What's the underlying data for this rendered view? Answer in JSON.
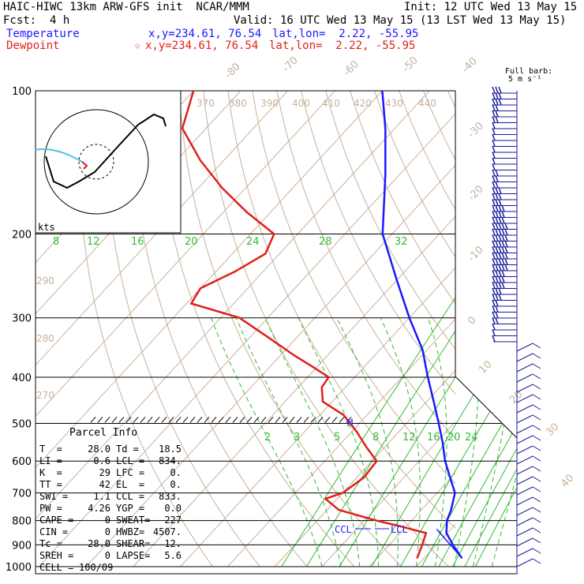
{
  "header": {
    "title": "HAIC-HIWC 13km ARW-GFS init  NCAR/MMM",
    "init": "Init: 12 UTC Wed 13 May 15",
    "fcst": "Fcst:  4 h",
    "valid": "Valid: 16 UTC Wed 13 May 15 (13 LST Wed 13 May 15)",
    "temperature_label": "Temperature",
    "temperature_xy": "x,y=234.61, 76.54",
    "temperature_latlon": "lat,lon=  2.22, -55.95",
    "dewpoint_label": "Dewpoint",
    "dewpoint_marker": "☆",
    "dewpoint_xy": "x,y=234.61, 76.54",
    "dewpoint_latlon": "lat,lon=  2.22, -55.95"
  },
  "colors": {
    "temperature": "#1a1aff",
    "dewpoint": "#e0201a",
    "isotherm": "#c8b09a",
    "mixing_ratio": "#33bb33",
    "isobar": "#000000",
    "barb": "#1a1a99"
  },
  "barb_legend": {
    "line1": "Full barb:",
    "line2": "5 m s⁻¹"
  },
  "parcel_info": {
    "title": "Parcel Info",
    "rows": [
      {
        "l1": "T  =",
        "v1": "28.0",
        "l2": "Td =",
        "v2": "18.5"
      },
      {
        "l1": "LI =",
        "v1": "0.6",
        "l2": "LCL =",
        "v2": "834."
      },
      {
        "l1": "K  =",
        "v1": "29",
        "l2": "LFC =",
        "v2": "0."
      },
      {
        "l1": "TT =",
        "v1": "42",
        "l2": "EL  =",
        "v2": "0."
      },
      {
        "l1": "SWI =",
        "v1": "1.1",
        "l2": "CCL =",
        "v2": "833."
      },
      {
        "l1": "PW =",
        "v1": "4.26",
        "l2": "YGP =",
        "v2": "0.0"
      },
      {
        "l1": "CAPE =",
        "v1": "0",
        "l2": "SWEAT=",
        "v2": "227"
      },
      {
        "l1": "CIN =",
        "v1": "0",
        "l2": "HWBZ=",
        "v2": "4507."
      },
      {
        "l1": "Tc =",
        "v1": "28.0",
        "l2": "SHEAR=",
        "v2": "12."
      },
      {
        "l1": "SREH =",
        "v1": "0",
        "l2": "LAPSE=",
        "v2": "5.6"
      },
      {
        "l1": "CELL =",
        "v1": "100/09",
        "l2": "",
        "v2": ""
      }
    ]
  },
  "chart_data": {
    "type": "line",
    "title": "",
    "ylabel": "",
    "pressure_levels": [
      100,
      200,
      300,
      400,
      500,
      600,
      700,
      800,
      900,
      1000
    ],
    "y_scale": "log",
    "temperature_ticks": [
      -80,
      -70,
      -60,
      -50,
      -40,
      -30,
      -20,
      -10,
      0,
      10,
      20,
      30,
      40
    ],
    "theta_labels": [
      270,
      280,
      290,
      370,
      380,
      390,
      400,
      410,
      420,
      430,
      440
    ],
    "mixing_ratio_labels": [
      2,
      3,
      5,
      8,
      12,
      16,
      20,
      24,
      28,
      32
    ],
    "mixing_ratio_labels_upper": [
      "8",
      "12",
      "16",
      "20",
      "24",
      "28",
      "32"
    ],
    "annotations": [
      "CCL",
      "LCL",
      "kts",
      "M"
    ],
    "series": [
      {
        "name": "Temperature",
        "pressure": [
          960,
          900,
          850,
          800,
          760,
          700,
          650,
          600,
          550,
          500,
          450,
          400,
          350,
          300,
          250,
          200,
          150,
          120,
          100
        ],
        "temp": [
          28.0,
          23.5,
          19.8,
          17.5,
          16.3,
          13.8,
          9.8,
          5.5,
          1.5,
          -3.2,
          -8.5,
          -14.5,
          -21.0,
          -30.0,
          -40.0,
          -52.0,
          -63.0,
          -72.0,
          -80.0
        ]
      },
      {
        "name": "Dewpoint",
        "pressure": [
          960,
          900,
          850,
          820,
          800,
          760,
          720,
          700,
          650,
          600,
          560,
          520,
          480,
          450,
          420,
          400,
          380,
          360,
          330,
          300,
          280,
          260,
          240,
          220,
          200,
          180,
          160,
          140,
          120,
          100
        ],
        "temp": [
          18.5,
          17.0,
          15.5,
          8.0,
          2.5,
          -7.5,
          -12.5,
          -10.0,
          -8.5,
          -9.0,
          -14.0,
          -19.0,
          -25.0,
          -32.0,
          -35.0,
          -35.5,
          -41.0,
          -47.0,
          -56.0,
          -66.0,
          -79.0,
          -80.0,
          -76.0,
          -73.0,
          -75.0,
          -85.0,
          -95.0,
          -105.0,
          -115.0,
          -120.0
        ]
      }
    ]
  }
}
